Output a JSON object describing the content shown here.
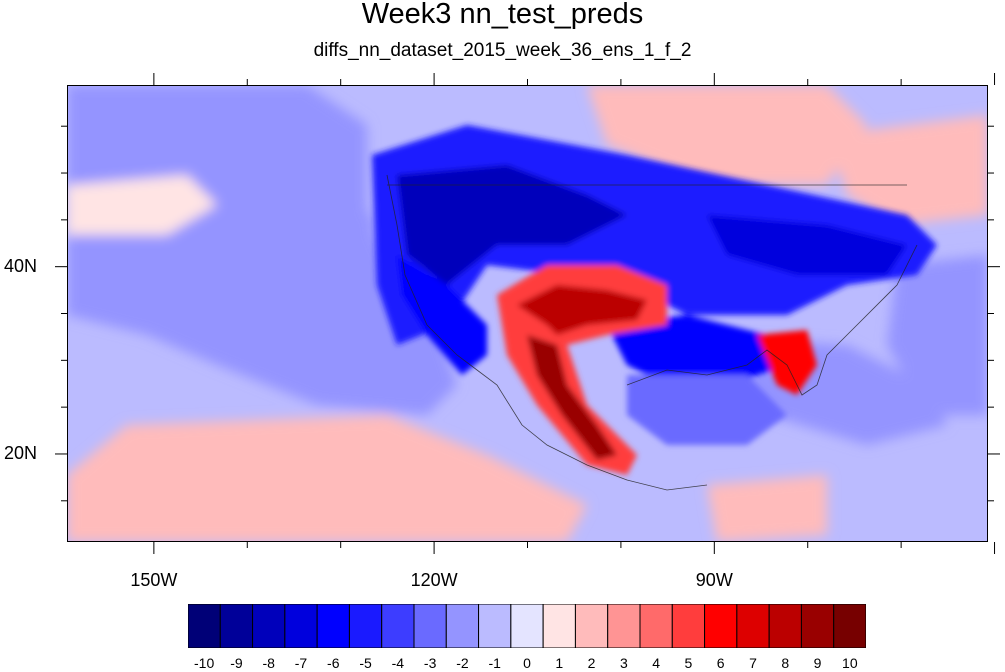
{
  "title": "Week3 nn_test_preds",
  "subtitle": "diffs_nn_dataset_2015_week_36_ens_1_f_2",
  "lat_labels": [
    {
      "name": "40n",
      "text": "40N",
      "lat": 40
    },
    {
      "name": "20n",
      "text": "20N",
      "lat": 20
    }
  ],
  "lon_labels": [
    {
      "name": "150w",
      "text": "150W",
      "lon": -150
    },
    {
      "name": "120w",
      "text": "120W",
      "lon": -120
    },
    {
      "name": "90w",
      "text": "90W",
      "lon": -90
    }
  ],
  "map_extent": {
    "lon_min": -159.3,
    "lon_max": -60.7,
    "lat_min": 10.6,
    "lat_max": 59.4
  },
  "colorbar": {
    "colors": [
      "#000077",
      "#000099",
      "#0000bb",
      "#0000dd",
      "#0000ff",
      "#1a1aff",
      "#3d3dff",
      "#6a6aff",
      "#9494ff",
      "#bbbbff",
      "#e4e4ff",
      "#ffe4e4",
      "#ffbbbb",
      "#ff9494",
      "#ff6a6a",
      "#ff3d3d",
      "#ff0000",
      "#dd0000",
      "#bb0000",
      "#990000",
      "#770000"
    ],
    "labels": [
      "-10",
      "-9",
      "-8",
      "-7",
      "-6",
      "-5",
      "-4",
      "-3",
      "-2",
      "-1",
      "0",
      "1",
      "2",
      "3",
      "4",
      "5",
      "6",
      "7",
      "8",
      "9",
      "10"
    ]
  },
  "field_regions": [
    {
      "name": "neutral-background",
      "value": -1
    },
    {
      "name": "pacific-blue-band",
      "value": -2
    },
    {
      "name": "north-pacific-red",
      "value": 1
    },
    {
      "name": "northeast-pacific-red",
      "value": 2
    },
    {
      "name": "subtropical-pacific-red",
      "value": 2
    },
    {
      "name": "northern-us-blue",
      "value": -5
    },
    {
      "name": "pacific-northwest-blue",
      "value": -8
    },
    {
      "name": "california-coast-blue",
      "value": -6
    },
    {
      "name": "southwest-mexico-red",
      "value": 5
    },
    {
      "name": "southwest-core-red",
      "value": 8
    },
    {
      "name": "mexico-core-red",
      "value": 9
    },
    {
      "name": "gulf-coast-blue",
      "value": -6
    },
    {
      "name": "gulf-of-mexico-blue",
      "value": -3
    },
    {
      "name": "florida-red",
      "value": 6
    },
    {
      "name": "great-lakes-blue",
      "value": -7
    },
    {
      "name": "northeast-canada-red",
      "value": 2
    }
  ]
}
